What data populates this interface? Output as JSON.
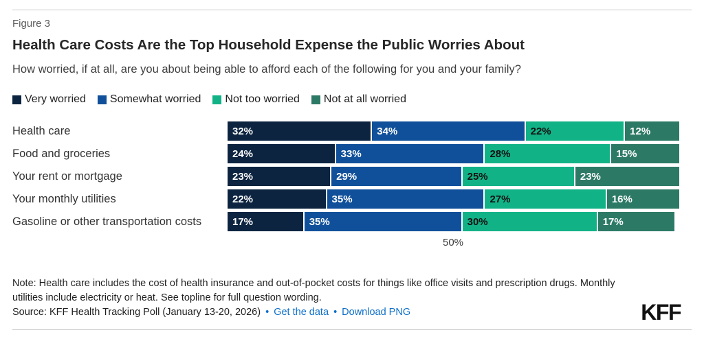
{
  "figure_label": "Figure 3",
  "title": "Health Care Costs Are the Top Household Expense the Public Worries About",
  "subtitle": "How worried, if at all, are you about being able to afford each of the following for you and your family?",
  "legend": [
    {
      "label": "Very worried",
      "color": "#0c2440"
    },
    {
      "label": "Somewhat worried",
      "color": "#10509a"
    },
    {
      "label": "Not too worried",
      "color": "#12b287"
    },
    {
      "label": "Not at all worried",
      "color": "#2c7a65"
    }
  ],
  "chart_data": {
    "type": "bar",
    "orientation": "horizontal",
    "stacked": true,
    "categories": [
      "Health care",
      "Food and groceries",
      "Your rent or mortgage",
      "Your monthly utilities",
      "Gasoline or other transportation costs"
    ],
    "series": [
      {
        "name": "Very worried",
        "color": "#0c2440",
        "text_color": "#ffffff",
        "values": [
          32,
          24,
          23,
          22,
          17
        ]
      },
      {
        "name": "Somewhat worried",
        "color": "#10509a",
        "text_color": "#ffffff",
        "values": [
          34,
          33,
          29,
          35,
          35
        ]
      },
      {
        "name": "Not too worried",
        "color": "#12b287",
        "text_color": "#111111",
        "values": [
          22,
          28,
          25,
          27,
          30
        ]
      },
      {
        "name": "Not at all worried",
        "color": "#2c7a65",
        "text_color": "#ffffff",
        "values": [
          12,
          15,
          23,
          16,
          17
        ]
      }
    ],
    "value_suffix": "%",
    "xlim": [
      0,
      100
    ],
    "x_tick": {
      "value": 50,
      "label": "50%"
    },
    "grid": false,
    "legend_position": "top"
  },
  "note": "Note: Health care includes the cost of health insurance and out-of-pocket costs for things like office visits and prescription drugs. Monthly utilities include electricity or heat. See topline for full question wording.",
  "source": {
    "prefix": "Source: KFF Health Tracking Poll (January 13-20, 2026)",
    "separator": "•",
    "link1": "Get the data",
    "link2": "Download PNG",
    "link_color": "#0d6fc9"
  },
  "logo": "KFF"
}
